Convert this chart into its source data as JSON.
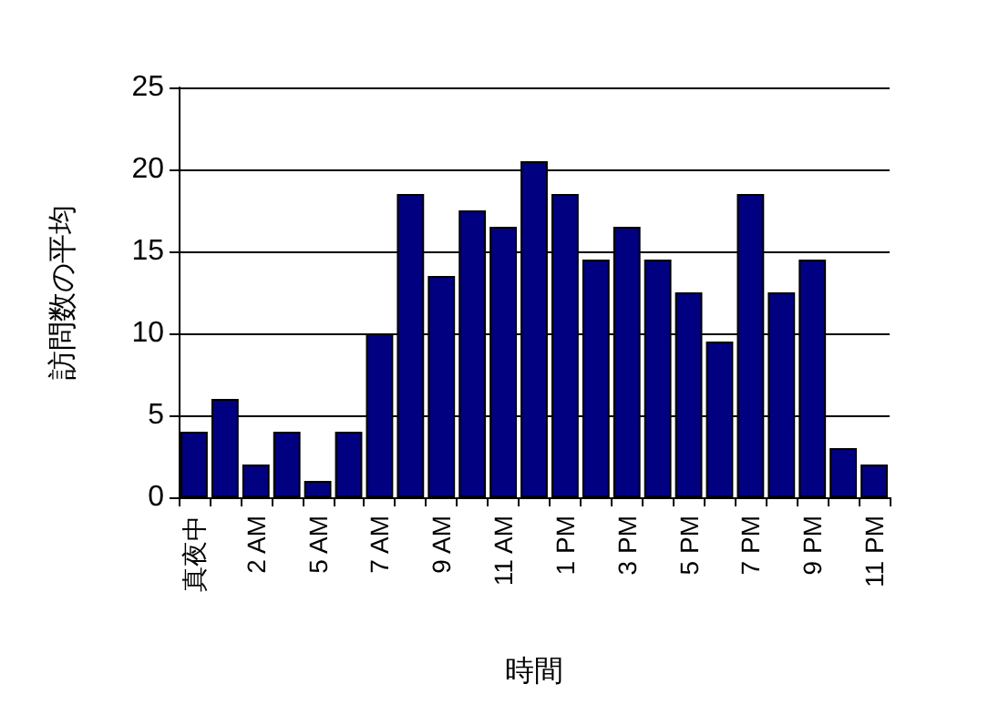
{
  "chart_data": {
    "type": "bar",
    "xlabel": "時間",
    "ylabel": "訪問数の平均",
    "categories": [
      "真夜中",
      null,
      "2 AM",
      null,
      "5 AM",
      null,
      "7 AM",
      null,
      "9 AM",
      null,
      "11 AM",
      null,
      "1 PM",
      null,
      "3 PM",
      null,
      "5 PM",
      null,
      "7 PM",
      null,
      "9 PM",
      null,
      "11 PM"
    ],
    "values": [
      4,
      6,
      2,
      4,
      1,
      4,
      10,
      18.5,
      13.5,
      17.5,
      16.5,
      20.5,
      18.5,
      14.5,
      16.5,
      14.5,
      12.5,
      9.5,
      18.5,
      12.5,
      14.5,
      3,
      2
    ],
    "color": "#000080",
    "ylim": [
      0,
      25
    ],
    "yticks": [
      0,
      5,
      10,
      15,
      20,
      25
    ],
    "grid": "y"
  }
}
